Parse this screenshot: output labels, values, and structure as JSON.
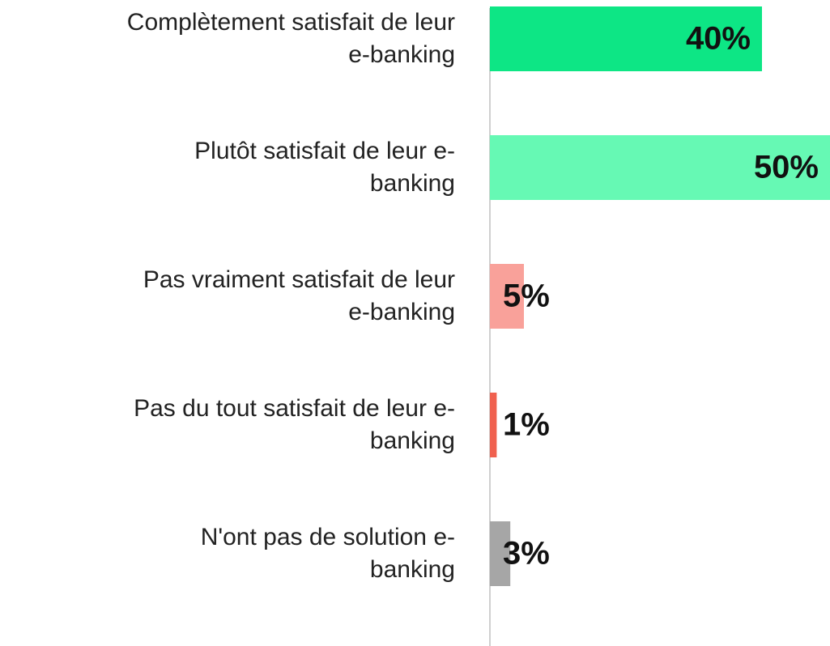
{
  "chart_data": {
    "type": "barh",
    "categories": [
      "Complètement satisfait de leur\ne-banking",
      "Plutôt satisfait de leur e-\nbanking",
      "Pas vraiment satisfait de leur\ne-banking",
      "Pas du tout satisfait de leur e-\nbanking",
      "N'ont pas de solution e-\nbanking"
    ],
    "values": [
      40,
      50,
      5,
      1,
      3
    ],
    "value_labels": [
      "40%",
      "50%",
      "5%",
      "1%",
      "3%"
    ],
    "colors": [
      "#0de685",
      "#66f9b4",
      "#f9a19a",
      "#f0614f",
      "#a6a6a6"
    ],
    "xlim": [
      0,
      50
    ]
  }
}
